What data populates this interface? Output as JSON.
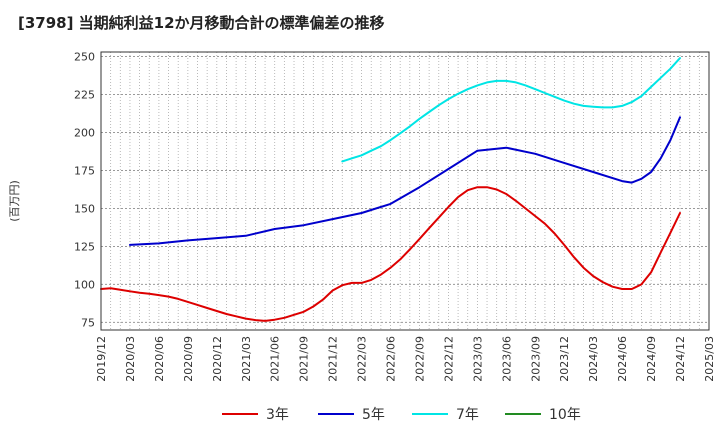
{
  "title": "[3798]  当期純利益12か月移動合計の標準偏差の推移",
  "chart_data": {
    "type": "line",
    "ylabel": "(百万円)",
    "ylim": [
      70,
      253
    ],
    "yticks": [
      75,
      100,
      125,
      150,
      175,
      200,
      225,
      250
    ],
    "x_tick_labels": [
      "2019/12",
      "2020/03",
      "2020/06",
      "2020/09",
      "2020/12",
      "2021/03",
      "2021/06",
      "2021/09",
      "2021/12",
      "2022/03",
      "2022/06",
      "2022/09",
      "2022/12",
      "2023/03",
      "2023/06",
      "2023/09",
      "2023/12",
      "2024/03",
      "2024/06",
      "2024/09",
      "2024/12",
      "2025/03"
    ],
    "grid": true,
    "legend_position": "bottom",
    "series": [
      {
        "name": "3年",
        "color": "#dd0000",
        "x": [
          "2019/12",
          "2020/01",
          "2020/02",
          "2020/03",
          "2020/04",
          "2020/05",
          "2020/06",
          "2020/07",
          "2020/08",
          "2020/09",
          "2020/10",
          "2020/11",
          "2020/12",
          "2021/01",
          "2021/02",
          "2021/03",
          "2021/04",
          "2021/05",
          "2021/06",
          "2021/07",
          "2021/08",
          "2021/09",
          "2021/10",
          "2021/11",
          "2021/12",
          "2022/01",
          "2022/02",
          "2022/03",
          "2022/04",
          "2022/05",
          "2022/06",
          "2022/07",
          "2022/08",
          "2022/09",
          "2022/10",
          "2022/11",
          "2022/12",
          "2023/01",
          "2023/02",
          "2023/03",
          "2023/04",
          "2023/05",
          "2023/06",
          "2023/07",
          "2023/08",
          "2023/09",
          "2023/10",
          "2023/11",
          "2023/12",
          "2024/01",
          "2024/02",
          "2024/03",
          "2024/04",
          "2024/05",
          "2024/06",
          "2024/07",
          "2024/08",
          "2024/09",
          "2024/10",
          "2024/11",
          "2024/12"
        ],
        "values": [
          97,
          97.5,
          96.5,
          95.5,
          94.5,
          93.8,
          93,
          92,
          90.5,
          88.5,
          86.5,
          84.5,
          82.5,
          80.5,
          79,
          77.5,
          76.5,
          76,
          76.8,
          78,
          80,
          82,
          85.5,
          90,
          96,
          99.5,
          101,
          101,
          103,
          106.5,
          111,
          116.5,
          123,
          130,
          137,
          144,
          151,
          157.5,
          162,
          164,
          164,
          162.5,
          159.5,
          155,
          150,
          145,
          140,
          133.5,
          126,
          118,
          111,
          105.5,
          101.5,
          98.5,
          97,
          97,
          100,
          108,
          121,
          134,
          147
        ]
      },
      {
        "name": "5年",
        "color": "#0000cc",
        "x": [
          "2020/03",
          "2020/06",
          "2020/09",
          "2020/12",
          "2021/03",
          "2021/06",
          "2021/09",
          "2021/12",
          "2022/03",
          "2022/06",
          "2022/09",
          "2022/12",
          "2023/03",
          "2023/06",
          "2023/09",
          "2023/12",
          "2024/03",
          "2024/06",
          "2024/07",
          "2024/08",
          "2024/09",
          "2024/10",
          "2024/11",
          "2024/12"
        ],
        "values": [
          126,
          127,
          129,
          130.5,
          132,
          136.5,
          139,
          143,
          147,
          153,
          164,
          176,
          188,
          190,
          186,
          180,
          174,
          168,
          167,
          169.5,
          174,
          183,
          195,
          210
        ]
      },
      {
        "name": "7年",
        "color": "#00e5e5",
        "x": [
          "2022/01",
          "2022/02",
          "2022/03",
          "2022/04",
          "2022/05",
          "2022/06",
          "2022/07",
          "2022/08",
          "2022/09",
          "2022/10",
          "2022/11",
          "2022/12",
          "2023/01",
          "2023/02",
          "2023/03",
          "2023/04",
          "2023/05",
          "2023/06",
          "2023/07",
          "2023/08",
          "2023/09",
          "2023/10",
          "2023/11",
          "2023/12",
          "2024/01",
          "2024/02",
          "2024/03",
          "2024/04",
          "2024/05",
          "2024/06",
          "2024/07",
          "2024/08",
          "2024/09",
          "2024/10",
          "2024/11",
          "2024/12"
        ],
        "values": [
          181,
          183,
          185,
          188,
          191,
          195,
          199.5,
          204,
          209,
          213.5,
          218,
          222,
          225.5,
          228.5,
          231,
          233,
          234,
          234,
          233,
          231,
          228.5,
          226,
          223.5,
          221,
          219,
          217.5,
          217,
          216.5,
          216.5,
          217.5,
          220,
          224,
          230,
          236,
          242,
          249
        ]
      },
      {
        "name": "10年",
        "color": "#228b22",
        "x": [],
        "values": []
      }
    ]
  }
}
